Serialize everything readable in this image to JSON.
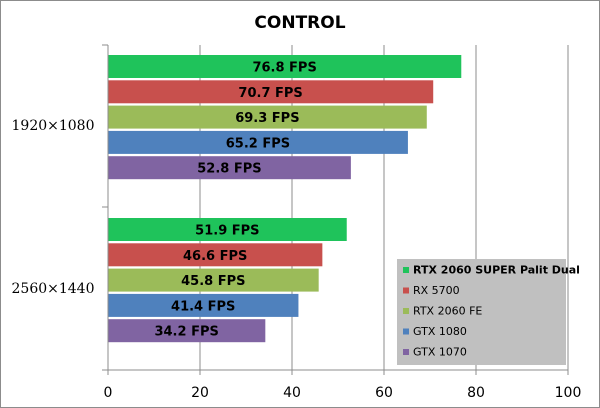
{
  "chart_data": {
    "type": "bar",
    "orientation": "horizontal",
    "title": "CONTROL",
    "xlabel": "",
    "ylabel": "",
    "xlim": [
      0,
      100
    ],
    "x_ticks": [
      "0",
      "20",
      "40",
      "60",
      "80",
      "100"
    ],
    "grid": true,
    "legend_position": "bottom-right",
    "categories": [
      "1920×1080",
      "2560×1440"
    ],
    "series": [
      {
        "name": "RTX 2060 SUPER Palit Dual",
        "color": "#1fc35b",
        "values": [
          76.8,
          51.9
        ],
        "labels": [
          "76.8 FPS",
          "51.9 FPS"
        ]
      },
      {
        "name": "RX 5700",
        "color": "#c8504d",
        "values": [
          70.7,
          46.6
        ],
        "labels": [
          "70.7 FPS",
          "46.6 FPS"
        ]
      },
      {
        "name": "RTX 2060 FE",
        "color": "#9bbb59",
        "values": [
          69.3,
          45.8
        ],
        "labels": [
          "69.3 FPS",
          "45.8 FPS"
        ]
      },
      {
        "name": "GTX 1080",
        "color": "#4f81bd",
        "values": [
          65.2,
          41.4
        ],
        "labels": [
          "65.2 FPS",
          "41.4 FPS"
        ]
      },
      {
        "name": "GTX 1070",
        "color": "#8064a2",
        "values": [
          52.8,
          34.2
        ],
        "labels": [
          "52.8 FPS",
          "34.2 FPS"
        ]
      }
    ]
  }
}
